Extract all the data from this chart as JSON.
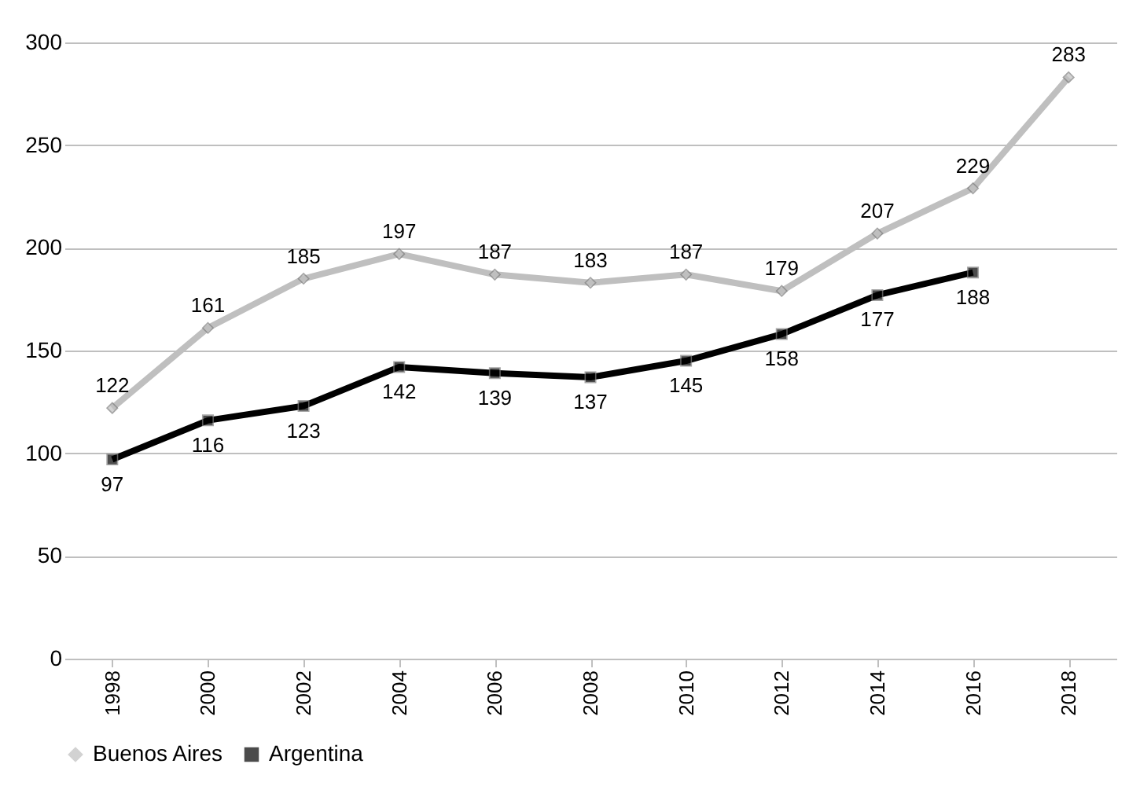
{
  "chart_data": {
    "type": "line",
    "categories": [
      "1998",
      "2000",
      "2002",
      "2004",
      "2006",
      "2008",
      "2010",
      "2012",
      "2014",
      "2016",
      "2018"
    ],
    "series": [
      {
        "name": "Buenos Aires",
        "color": "#bfbfbf",
        "marker": "diamond",
        "values": [
          122,
          161,
          185,
          197,
          187,
          183,
          187,
          179,
          207,
          229,
          283
        ]
      },
      {
        "name": "Argentina",
        "color": "#000000",
        "marker": "square",
        "values": [
          97,
          116,
          123,
          142,
          139,
          137,
          145,
          158,
          177,
          188,
          null
        ]
      }
    ],
    "ylim": [
      0,
      300
    ],
    "yticks": [
      0,
      50,
      100,
      150,
      200,
      250,
      300
    ],
    "grid": "y",
    "legend": "bottom",
    "data_labels": true,
    "line_style": "solid"
  }
}
